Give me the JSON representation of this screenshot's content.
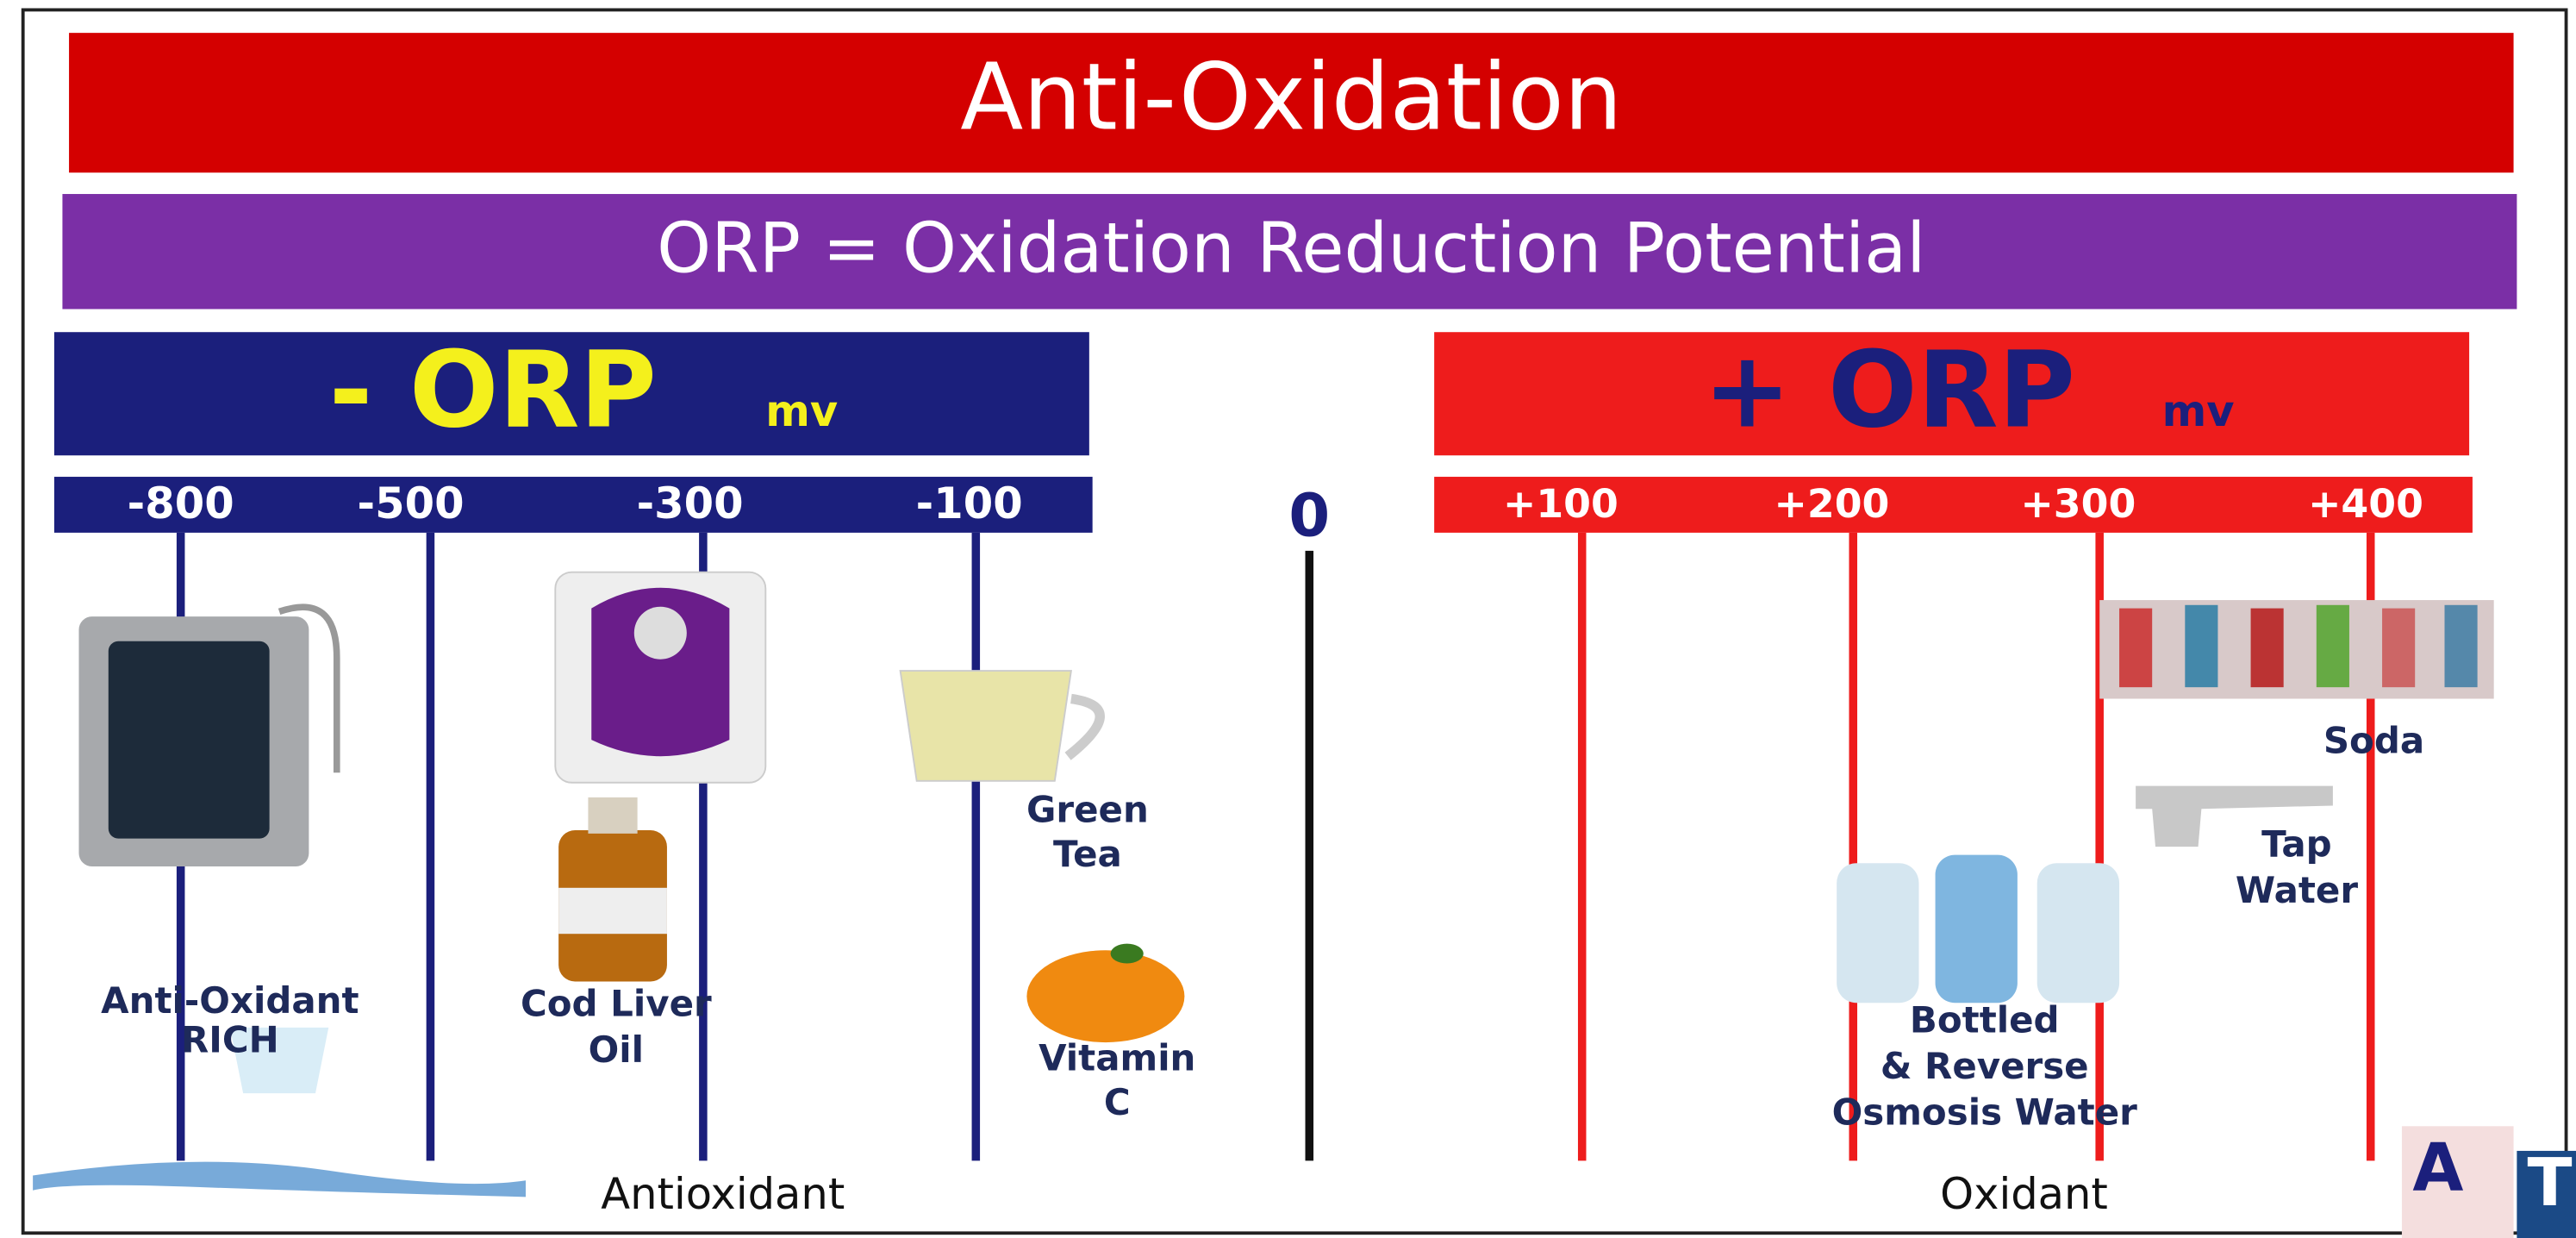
{
  "header": {
    "title": "Anti-Oxidation",
    "subtitle": "ORP = Oxidation Reduction Potential"
  },
  "negative": {
    "label": "- ORP",
    "unit": "mv",
    "scale": [
      "-800",
      "-500",
      "-300",
      "-100"
    ]
  },
  "zero": "0",
  "positive": {
    "label": "+ ORP",
    "unit": "mv",
    "scale": [
      "+100",
      "+200",
      "+300",
      "+400"
    ]
  },
  "items": [
    {
      "lines": [
        "Anti-Oxidant",
        "RICH"
      ]
    },
    {
      "lines": [
        "Cod Liver",
        "Oil"
      ]
    },
    {
      "lines": [
        "Green",
        "Tea"
      ]
    },
    {
      "lines": [
        "Vitamin",
        "C"
      ]
    },
    {
      "lines": [
        "Soda"
      ]
    },
    {
      "lines": [
        "Tap",
        "Water"
      ]
    },
    {
      "lines": [
        "Bottled",
        "& Reverse",
        "Osmosis Water"
      ]
    }
  ],
  "footer": {
    "left": "Antioxidant",
    "right": "Oxidant"
  },
  "logo": {
    "left": "A",
    "right": "T"
  }
}
